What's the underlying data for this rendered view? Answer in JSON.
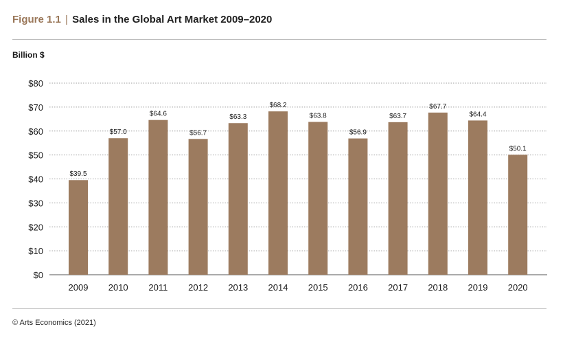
{
  "figure": {
    "label": "Figure 1.1",
    "separator": "|",
    "title": "Sales in the Global Art Market 2009–2020",
    "unit_label": "Billion $",
    "source": "© Arts Economics (2021)"
  },
  "colors": {
    "bar": "#9c7b5f",
    "accent": "#9a7759",
    "grid": "#9e9e9e"
  },
  "chart_data": {
    "type": "bar",
    "title": "Sales in the Global Art Market 2009–2020",
    "ylabel": "Billion $",
    "xlabel": "",
    "categories": [
      "2009",
      "2010",
      "2011",
      "2012",
      "2013",
      "2014",
      "2015",
      "2016",
      "2017",
      "2018",
      "2019",
      "2020"
    ],
    "values": [
      39.5,
      57.0,
      64.6,
      56.7,
      63.3,
      68.2,
      63.8,
      56.9,
      63.7,
      67.7,
      64.4,
      50.1
    ],
    "data_labels": [
      "$39.5",
      "$57.0",
      "$64.6",
      "$56.7",
      "$63.3",
      "$68.2",
      "$63.8",
      "$56.9",
      "$63.7",
      "$67.7",
      "$64.4",
      "$50.1"
    ],
    "ylim": [
      0,
      80
    ],
    "yticks": [
      0,
      10,
      20,
      30,
      40,
      50,
      60,
      70,
      80
    ],
    "ytick_labels": [
      "$0",
      "$10",
      "$20",
      "$30",
      "$40",
      "$50",
      "$60",
      "$70",
      "$80"
    ],
    "grid": true,
    "grid_style": "dotted",
    "legend": "none"
  }
}
